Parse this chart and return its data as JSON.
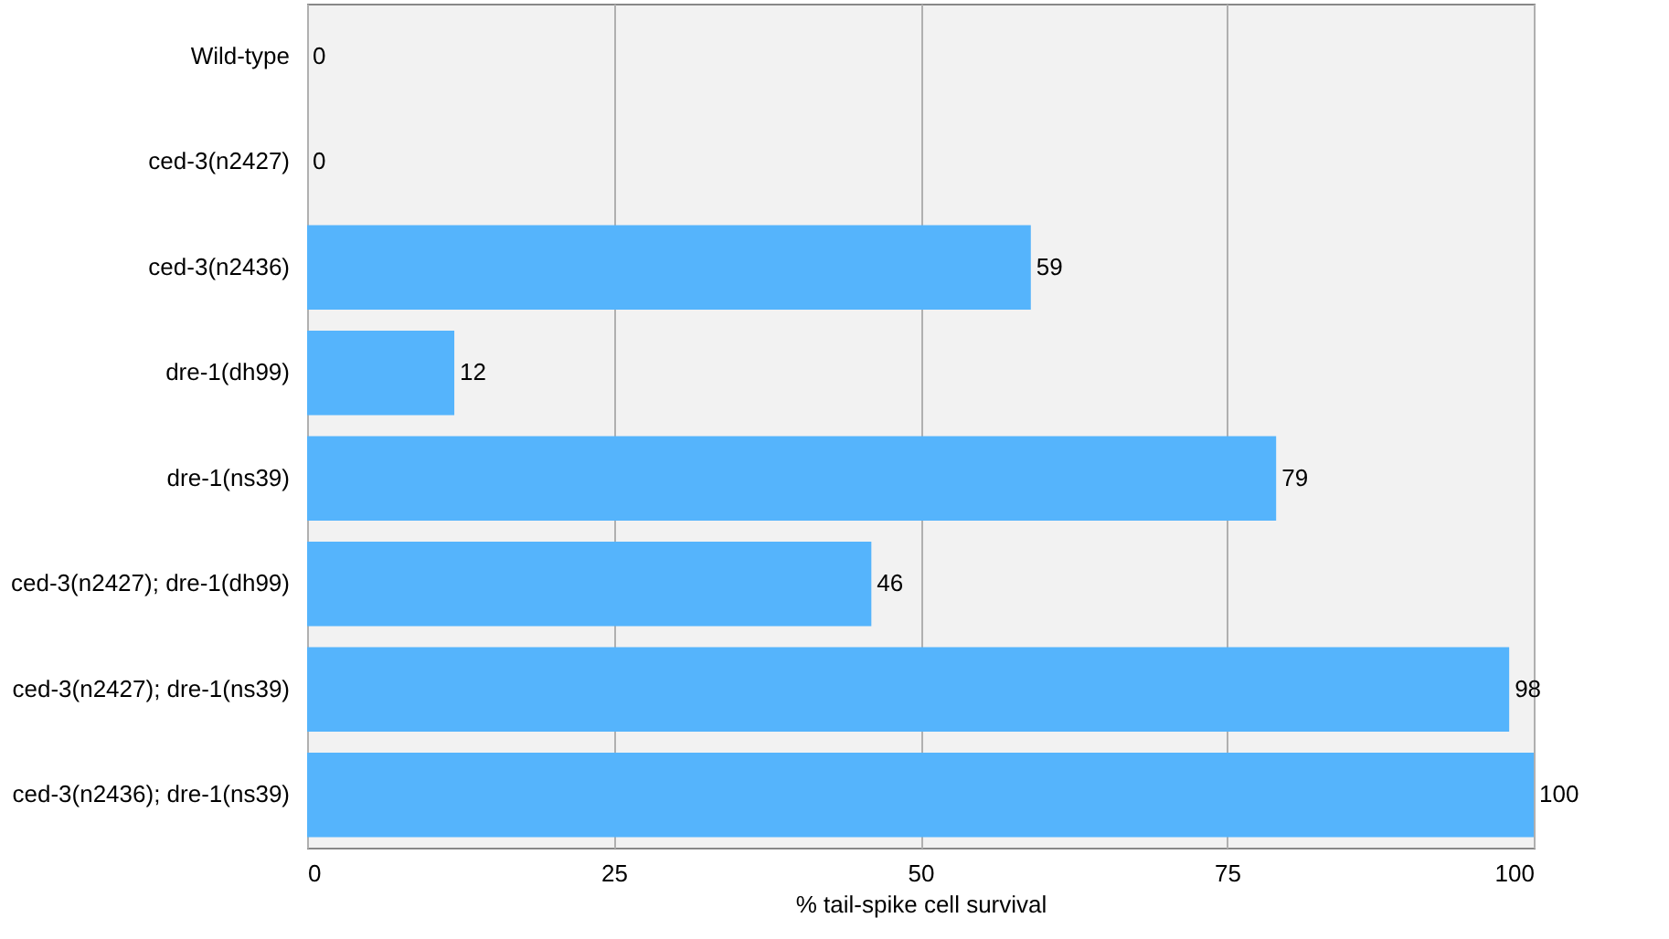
{
  "chart_data": {
    "type": "bar",
    "orientation": "horizontal",
    "xlabel": "% tail-spike cell survival",
    "categories": [
      "Wild-type",
      "ced-3(n2427)",
      "ced-3(n2436)",
      "dre-1(dh99)",
      "dre-1(ns39)",
      "ced-3(n2427); dre-1(dh99)",
      "ced-3(n2427); dre-1(ns39)",
      "ced-3(n2436); dre-1(ns39)"
    ],
    "values": [
      0,
      0,
      59,
      12,
      79,
      46,
      98,
      100
    ],
    "color": "#55b4fc",
    "xlim": [
      0,
      100
    ],
    "xticks": [
      0,
      25,
      50,
      75,
      100
    ],
    "grid": "x",
    "data_labels": true
  }
}
